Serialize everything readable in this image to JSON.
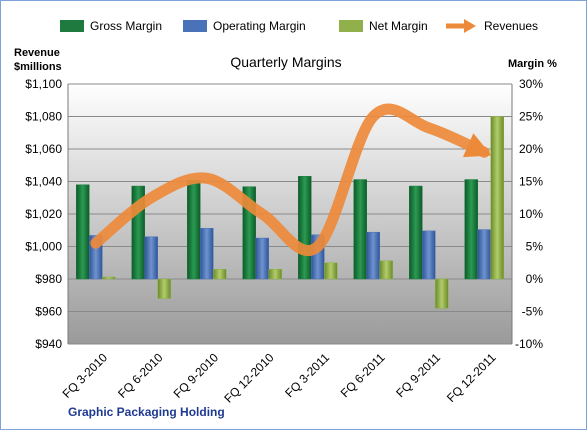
{
  "chart_data": {
    "type": "bar",
    "title": "Quarterly Margins",
    "left_axis_label_line1": "Revenue",
    "left_axis_label_line2": "$millions",
    "right_axis_label": "Margin %",
    "company": "Graphic Packaging Holding",
    "categories": [
      "FQ 3-2010",
      "FQ 6-2010",
      "FQ 9-2010",
      "FQ 12-2010",
      "FQ 3-2011",
      "FQ 6-2011",
      "FQ 9-2011",
      "FQ 12-2011"
    ],
    "margin_ticks": [
      "30%",
      "25%",
      "20%",
      "15%",
      "10%",
      "5%",
      "0%",
      "-5%",
      "-10%"
    ],
    "revenue_ticks": [
      "$1,100",
      "$1,080",
      "$1,060",
      "$1,040",
      "$1,020",
      "$1,000",
      "$980",
      "$960",
      "$940"
    ],
    "margin_range": [
      -10,
      30
    ],
    "revenue_range": [
      940,
      1100
    ],
    "series": [
      {
        "name": "Gross Margin",
        "color": "#1e7a3e",
        "values": [
          14.5,
          14.3,
          15.2,
          14.2,
          15.8,
          15.3,
          14.3,
          15.3
        ]
      },
      {
        "name": "Operating Margin",
        "color": "#4a72b8",
        "values": [
          6.7,
          6.5,
          7.8,
          6.3,
          6.8,
          7.2,
          7.4,
          7.6
        ]
      },
      {
        "name": "Net Margin",
        "color": "#8fb04a",
        "values": [
          0.3,
          -3.0,
          1.5,
          1.5,
          2.5,
          2.8,
          -4.5,
          25.0
        ]
      }
    ],
    "revenue": {
      "name": "Revenues",
      "color": "#ed8a3a",
      "values": [
        1002,
        1030,
        1042,
        1020,
        1000,
        1080,
        1073,
        1058
      ]
    },
    "grid": true,
    "legend_position": "top"
  }
}
